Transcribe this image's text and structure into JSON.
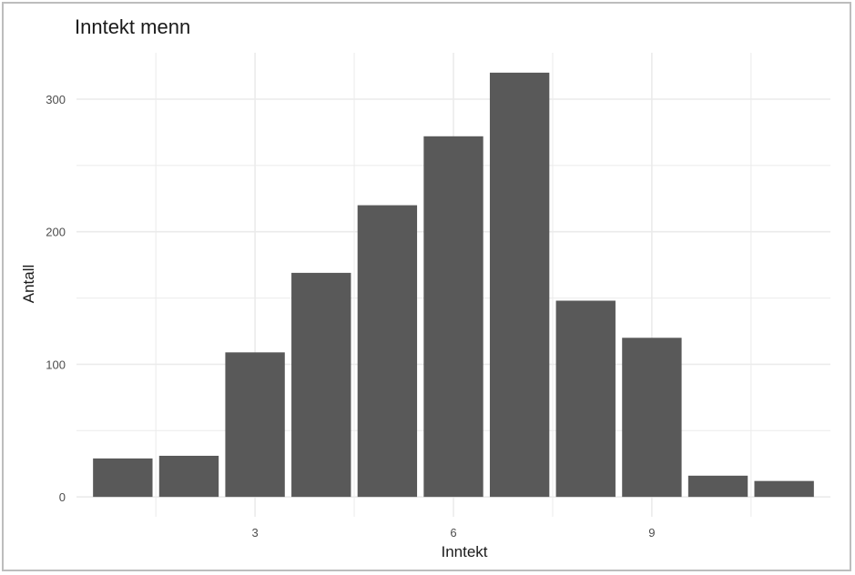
{
  "chart_data": {
    "type": "bar",
    "title": "Inntekt menn",
    "xlabel": "Inntekt",
    "ylabel": "Antall",
    "x": [
      1,
      2,
      3,
      4,
      5,
      6,
      7,
      8,
      9,
      10,
      11
    ],
    "values": [
      29,
      31,
      109,
      169,
      220,
      272,
      320,
      148,
      120,
      16,
      12
    ],
    "xlim": [
      0.3,
      11.7
    ],
    "ylim": [
      -15,
      335
    ],
    "x_ticks": [
      3,
      6,
      9
    ],
    "x_tick_labels": [
      "3",
      "6",
      "9"
    ],
    "y_ticks": [
      0,
      100,
      200,
      300
    ],
    "y_tick_labels": [
      "0",
      "100",
      "200",
      "300"
    ],
    "grid": true,
    "bar_color": "#595959",
    "grid_color": "#ebebeb",
    "background": "#ffffff"
  }
}
